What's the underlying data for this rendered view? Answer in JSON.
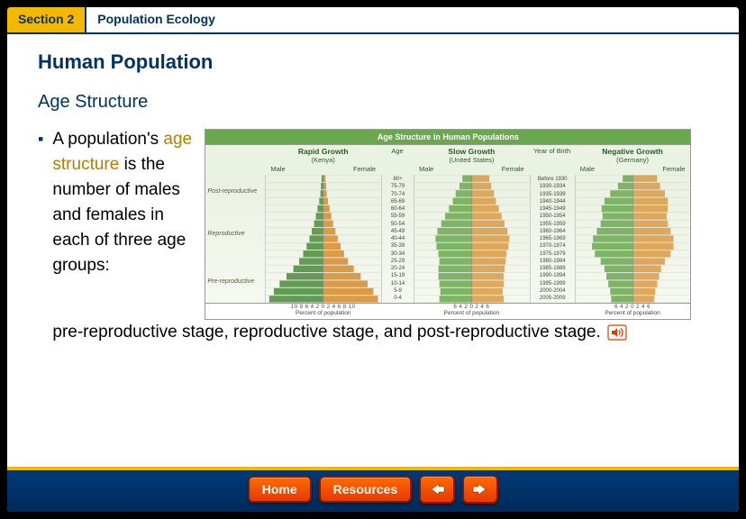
{
  "header": {
    "section_label": "Section 2",
    "chapter_title": "Population Ecology"
  },
  "main_heading": "Human Population",
  "sub_heading": "Age Structure",
  "bullet": {
    "text_before_term": "A population's ",
    "term": "age structure",
    "text_after_term_left": " is the number of males and females in each of three age groups:",
    "text_bottom": "pre-reproductive stage, reproductive stage, and post-reproductive stage."
  },
  "chart": {
    "title": "Age Structure in Human Populations",
    "stage_header": "",
    "stages": {
      "post": "Post-reproductive",
      "rep": "Reproductive",
      "pre": "Pre-reproductive"
    },
    "age_header": "Age",
    "yob_header": "Year of Birth",
    "age_labels": [
      "80+",
      "75-79",
      "70-74",
      "65-69",
      "60-64",
      "55-59",
      "50-54",
      "45-49",
      "40-44",
      "35-39",
      "30-34",
      "25-29",
      "20-24",
      "15-19",
      "10-14",
      "5-9",
      "0-4"
    ],
    "yob_labels": [
      "Before 1930",
      "1930-1934",
      "1935-1939",
      "1940-1944",
      "1945-1949",
      "1950-1954",
      "1955-1959",
      "1960-1964",
      "1965-1969",
      "1970-1974",
      "1975-1979",
      "1980-1984",
      "1985-1989",
      "1990-1994",
      "1995-1999",
      "2000-2004",
      "2005-2009"
    ],
    "xaxis_label": "Percent of population",
    "pyramids": [
      {
        "title": "Rapid Growth",
        "subtitle": "(Kenya)",
        "ticks": "10  8  6  4  2  0  2  4  6  8  10",
        "male_color": "#4a8a3a",
        "female_color": "#d68a2a",
        "male": [
          0.3,
          0.4,
          0.5,
          0.7,
          1.0,
          1.3,
          1.6,
          2.0,
          2.4,
          2.9,
          3.5,
          4.2,
          5.2,
          6.4,
          7.6,
          8.6,
          9.4
        ],
        "female": [
          0.4,
          0.5,
          0.6,
          0.8,
          1.1,
          1.4,
          1.7,
          2.1,
          2.5,
          3.0,
          3.6,
          4.3,
          5.3,
          6.5,
          7.7,
          8.7,
          9.5
        ],
        "max": 10
      },
      {
        "title": "Slow Growth",
        "subtitle": "(United States)",
        "ticks": "6  4  2  0  2  4  6",
        "male_color": "#6aa84f",
        "female_color": "#d99a45",
        "male": [
          1.0,
          1.3,
          1.7,
          2.0,
          2.4,
          2.8,
          3.2,
          3.6,
          3.8,
          3.7,
          3.5,
          3.4,
          3.5,
          3.5,
          3.4,
          3.3,
          3.4
        ],
        "female": [
          1.8,
          2.0,
          2.3,
          2.5,
          2.8,
          3.1,
          3.4,
          3.7,
          3.9,
          3.8,
          3.6,
          3.5,
          3.4,
          3.3,
          3.3,
          3.2,
          3.3
        ],
        "max": 6
      },
      {
        "title": "Negative Growth",
        "subtitle": "(Germany)",
        "ticks": "6  4  2  0  2  4  6",
        "male_color": "#6aa84f",
        "female_color": "#d99a45",
        "male": [
          1.1,
          1.6,
          2.4,
          3.0,
          3.3,
          3.2,
          3.4,
          3.8,
          4.2,
          4.3,
          4.0,
          3.4,
          3.0,
          2.8,
          2.6,
          2.4,
          2.3
        ],
        "female": [
          2.5,
          2.8,
          3.3,
          3.6,
          3.6,
          3.5,
          3.6,
          3.9,
          4.2,
          4.2,
          3.9,
          3.3,
          2.9,
          2.7,
          2.5,
          2.3,
          2.2
        ],
        "max": 6
      }
    ],
    "grid_color": "#c8c8b8",
    "background": "#eaf2e2"
  },
  "footer": {
    "home_label": "Home",
    "resources_label": "Resources"
  },
  "colors": {
    "brand_blue": "#003366",
    "brand_gold": "#f5b800",
    "brand_orange": "#ff5500"
  }
}
